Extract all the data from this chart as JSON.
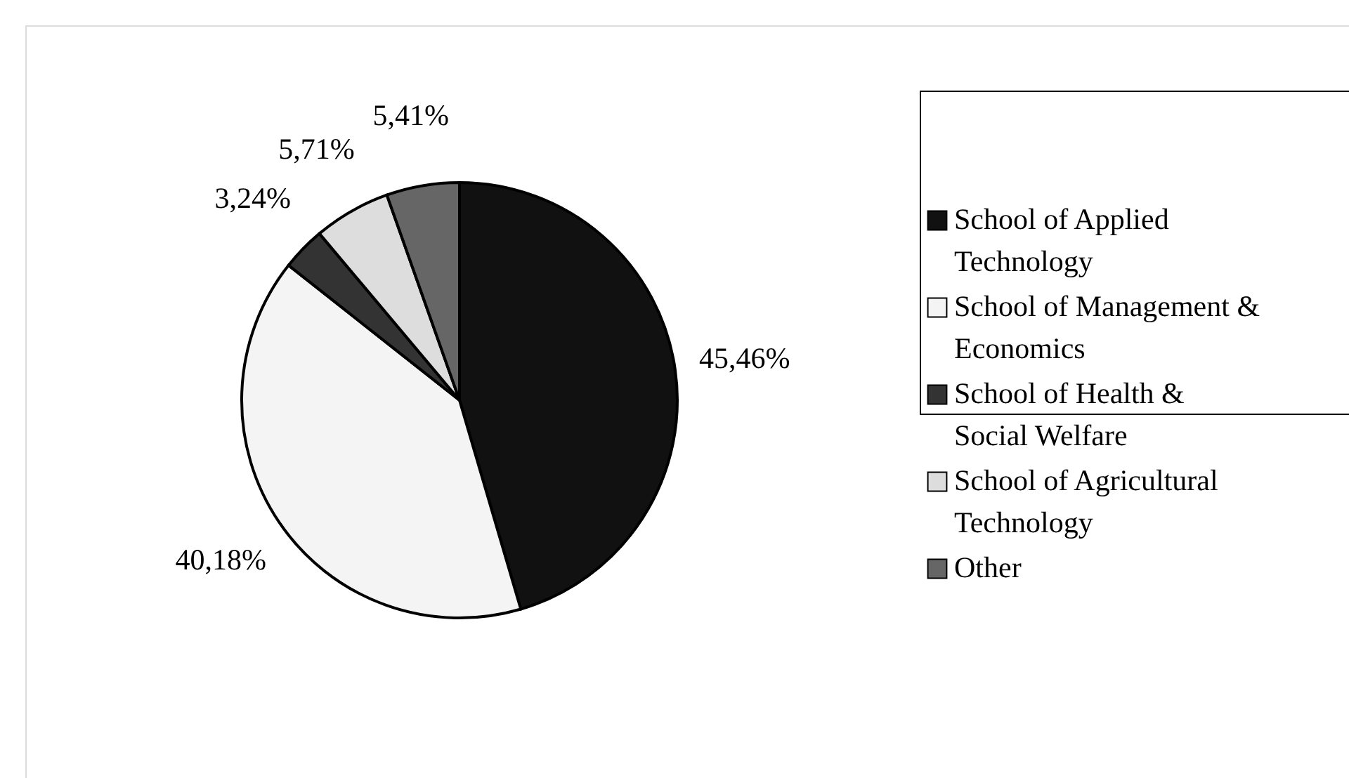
{
  "chart_data": {
    "type": "pie",
    "categories": [
      "School of Applied Technology",
      "School of Management & Economics",
      "School of Health & Social Welfare",
      "School of Agricultural Technology",
      "Other"
    ],
    "values": [
      45.46,
      40.18,
      3.24,
      5.71,
      5.41
    ],
    "colors": [
      "#111111",
      "#f4f4f4",
      "#333333",
      "#dddddd",
      "#666666"
    ],
    "value_labels": [
      "45,46%",
      "40,18%",
      "3,24%",
      "5,71%",
      "5,41%"
    ],
    "legend": "right"
  }
}
